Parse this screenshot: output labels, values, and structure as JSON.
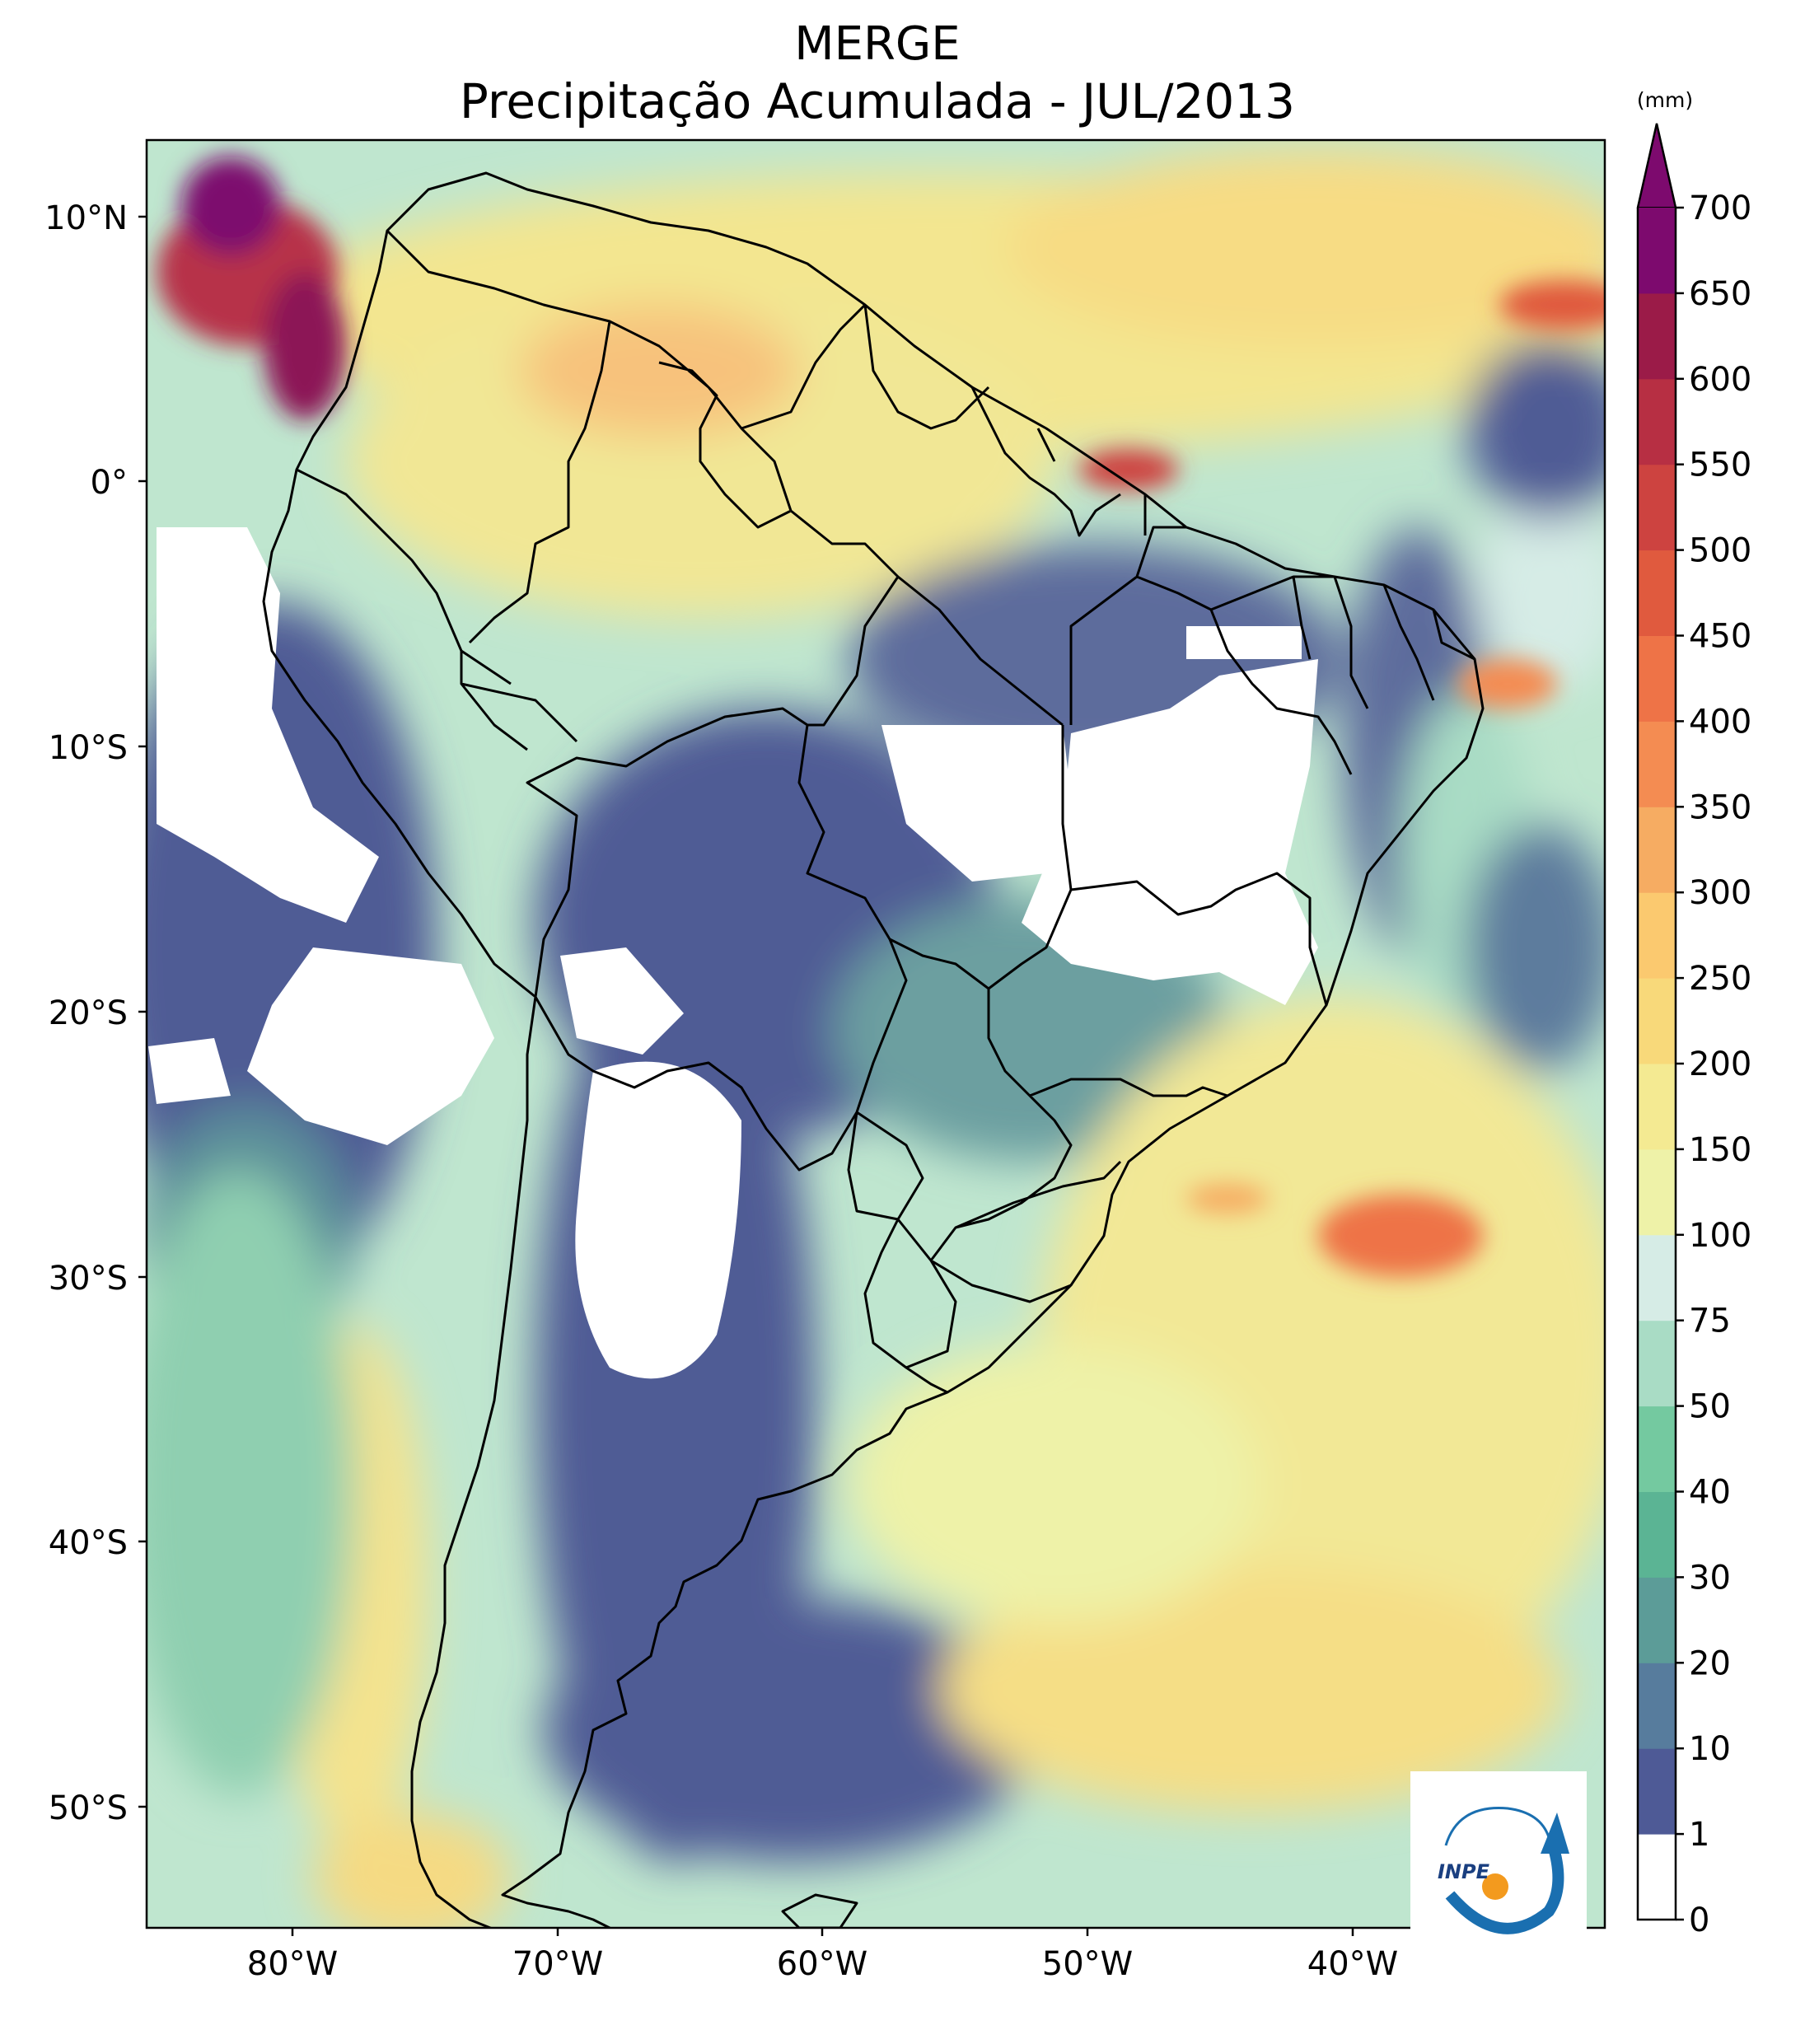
{
  "title": "MERGE",
  "subtitle": "Precipitação Acumulada - JUL/2013",
  "lat_ticks": [
    "10°N",
    "0°",
    "10°S",
    "20°S",
    "30°S",
    "40°S",
    "50°S"
  ],
  "lon_ticks": [
    "80°W",
    "70°W",
    "60°W",
    "50°W",
    "40°W"
  ],
  "colorbar": {
    "unit": "(mm)",
    "levels": [
      "0",
      "1",
      "10",
      "20",
      "30",
      "40",
      "50",
      "75",
      "100",
      "150",
      "200",
      "250",
      "300",
      "350",
      "400",
      "450",
      "500",
      "550",
      "600",
      "650",
      "700"
    ],
    "colors": [
      "#ffffff",
      "#4e5a96",
      "#577c9d",
      "#5c9c98",
      "#5bb494",
      "#74c9a0",
      "#a9dcc5",
      "#d6ece6",
      "#eef2a8",
      "#f4ea92",
      "#f8d97a",
      "#fbc96f",
      "#f6ac62",
      "#f48c52",
      "#ee7347",
      "#e05a3e",
      "#cd4340",
      "#b72f43",
      "#9b1b48",
      "#7d0a6e"
    ],
    "extend_max_color": "#7d0a6e"
  },
  "logo": "INPE"
}
